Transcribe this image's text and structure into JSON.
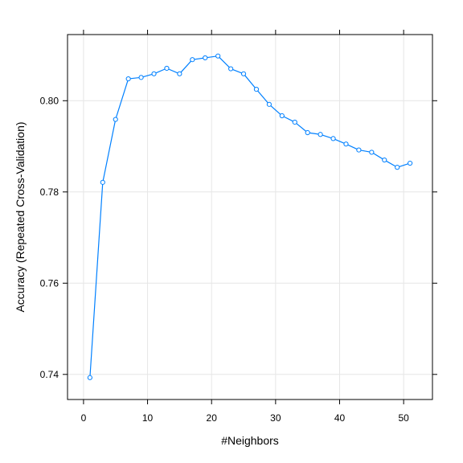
{
  "chart_data": {
    "type": "line",
    "xlabel": "#Neighbors",
    "ylabel": "Accuracy (Repeated Cross-Validation)",
    "xlim": [
      -2.5,
      54.5
    ],
    "ylim": [
      0.7345,
      0.8145
    ],
    "x_ticks": [
      0,
      10,
      20,
      30,
      40,
      50
    ],
    "y_ticks": [
      0.74,
      0.76,
      0.78,
      0.8
    ],
    "x_tick_labels": [
      "0",
      "10",
      "20",
      "30",
      "40",
      "50"
    ],
    "y_tick_labels": [
      "0.74",
      "0.76",
      "0.78",
      "0.80"
    ],
    "grid": true,
    "color": "#0080ff",
    "series": [
      {
        "x": [
          1,
          3,
          5,
          7,
          9,
          11,
          13,
          15,
          17,
          19,
          21,
          23,
          25,
          27,
          29,
          31,
          33,
          35,
          37,
          39,
          41,
          43,
          45,
          47,
          49,
          51
        ],
        "y": [
          0.7393,
          0.7821,
          0.7959,
          0.8048,
          0.8051,
          0.8059,
          0.8071,
          0.8059,
          0.809,
          0.8094,
          0.8098,
          0.807,
          0.8059,
          0.8025,
          0.7992,
          0.7967,
          0.7953,
          0.793,
          0.7926,
          0.7917,
          0.7905,
          0.7892,
          0.7887,
          0.787,
          0.7854,
          0.7863
        ]
      }
    ]
  }
}
